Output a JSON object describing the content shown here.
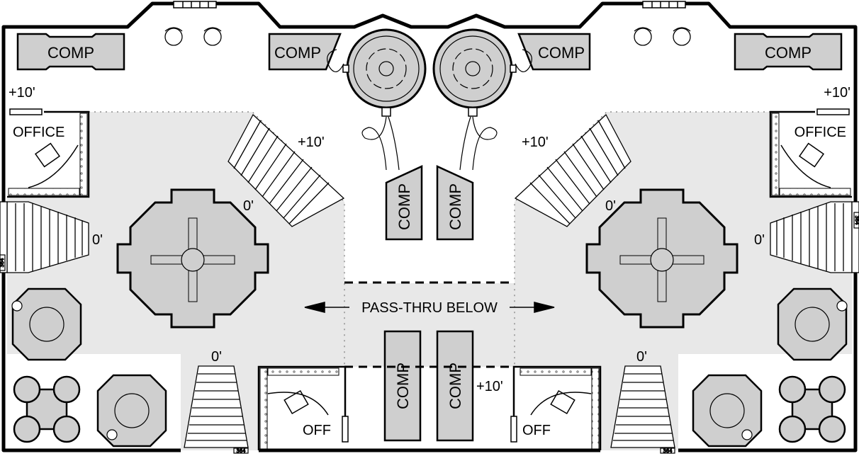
{
  "labels": {
    "comp": "COMP",
    "office": "OFFICE",
    "off": "OFF",
    "plus10": "+10'",
    "zero": "0'",
    "pass_thru": "PASS-THRU BELOW",
    "door_code": "364"
  },
  "colors": {
    "floor_shade": "#e8e8e8",
    "fixture_fill": "#cfcfcf",
    "wall": "#000000"
  }
}
